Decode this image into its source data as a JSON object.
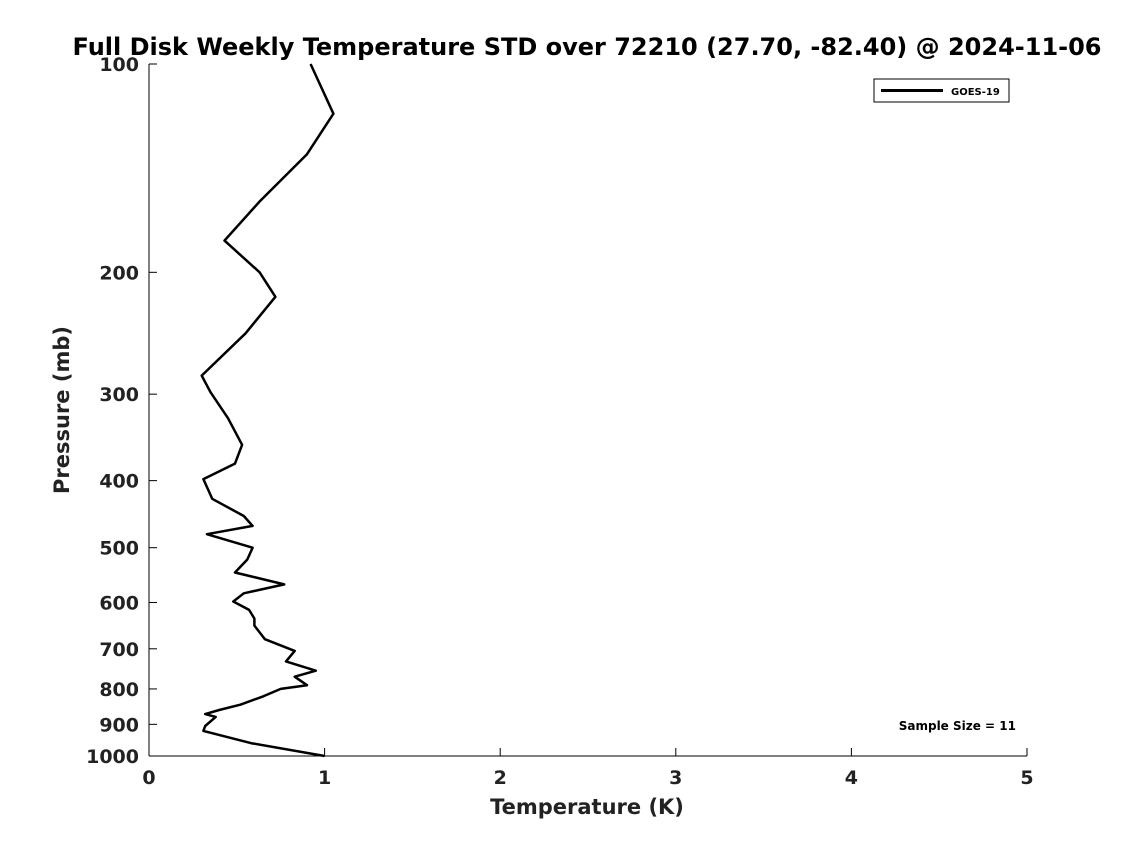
{
  "chart_data": {
    "type": "line",
    "title": "Full Disk Weekly Temperature STD over 72210 (27.70, -82.40) @ 2024-11-06",
    "xlabel": "Temperature (K)",
    "ylabel": "Pressure (mb)",
    "xlim": [
      0,
      5
    ],
    "ylim": [
      100,
      1000
    ],
    "y_scale": "log",
    "y_reversed": true,
    "xticks": [
      0,
      1,
      2,
      3,
      4,
      5
    ],
    "yticks": [
      100,
      200,
      300,
      400,
      500,
      600,
      700,
      800,
      900,
      1000
    ],
    "grid": false,
    "legend_position": "top-right",
    "annotation": "Sample Size = 11",
    "series": [
      {
        "name": "GOES-19",
        "color": "#000000",
        "x": [
          0.92,
          1.05,
          0.9,
          0.63,
          0.43,
          0.63,
          0.72,
          0.55,
          0.3,
          0.35,
          0.45,
          0.53,
          0.49,
          0.31,
          0.36,
          0.54,
          0.59,
          0.33,
          0.59,
          0.56,
          0.49,
          0.77,
          0.54,
          0.48,
          0.57,
          0.6,
          0.6,
          0.66,
          0.83,
          0.78,
          0.95,
          0.83,
          0.9,
          0.75,
          0.65,
          0.52,
          0.4,
          0.32,
          0.38,
          0.32,
          0.31,
          0.58,
          1.0
        ],
        "y": [
          100,
          118,
          135,
          158,
          180,
          200,
          217,
          245,
          282,
          298,
          325,
          355,
          378,
          398,
          425,
          450,
          465,
          478,
          500,
          520,
          543,
          565,
          582,
          598,
          615,
          633,
          648,
          678,
          705,
          730,
          753,
          768,
          790,
          800,
          820,
          843,
          858,
          870,
          878,
          905,
          920,
          958,
          1000
        ]
      }
    ]
  }
}
